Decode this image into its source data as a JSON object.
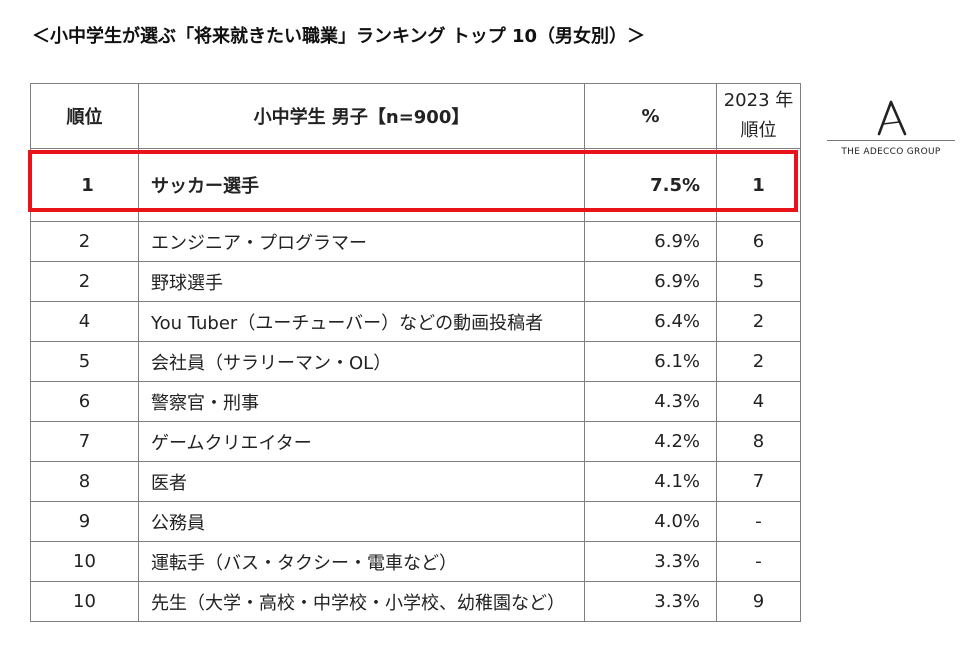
{
  "title": "＜小中学生が選ぶ「将来就きたい職業」ランキング トップ 10（男女別）＞",
  "table": {
    "headers": {
      "rank": "順位",
      "job": "小中学生 男子【n=900】",
      "percent": "%",
      "prev_line1": "2023 年",
      "prev_line2": "順位"
    },
    "rows": [
      {
        "rank": "1",
        "job": "サッカー選手",
        "percent": "7.5%",
        "prev": "1"
      },
      {
        "rank": "2",
        "job": "エンジニア・プログラマー",
        "percent": "6.9%",
        "prev": "6"
      },
      {
        "rank": "2",
        "job": "野球選手",
        "percent": "6.9%",
        "prev": "5"
      },
      {
        "rank": "4",
        "job": "You Tuber（ユーチューバー）などの動画投稿者",
        "percent": "6.4%",
        "prev": "2"
      },
      {
        "rank": "5",
        "job": "会社員（サラリーマン・OL）",
        "percent": "6.1%",
        "prev": "2"
      },
      {
        "rank": "6",
        "job": "警察官・刑事",
        "percent": "4.3%",
        "prev": "4"
      },
      {
        "rank": "7",
        "job": "ゲームクリエイター",
        "percent": "4.2%",
        "prev": "8"
      },
      {
        "rank": "8",
        "job": "医者",
        "percent": "4.1%",
        "prev": "7"
      },
      {
        "rank": "9",
        "job": "公務員",
        "percent": "4.0%",
        "prev": "-"
      },
      {
        "rank": "10",
        "job": "運転手（バス・タクシー・電車など）",
        "percent": "3.3%",
        "prev": "-"
      },
      {
        "rank": "10",
        "job": "先生（大学・高校・中学校・小学校、幼稚園など）",
        "percent": "3.3%",
        "prev": "9"
      }
    ]
  },
  "logo": {
    "icon": "adecco-a-icon",
    "text": "THE ADECCO GROUP"
  },
  "colors": {
    "highlight": "#e8141a",
    "border": "#7f7f7f"
  }
}
